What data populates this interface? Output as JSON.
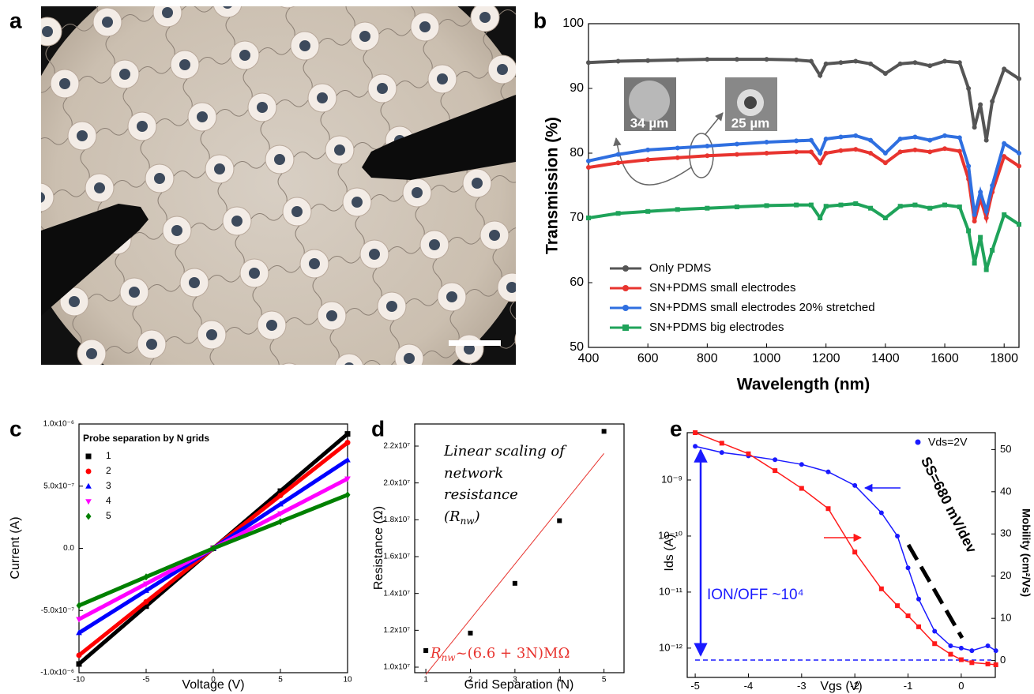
{
  "chart_data": [
    {
      "type": "image",
      "panel": "a"
    },
    {
      "type": "line",
      "panel": "b",
      "xlabel": "Wavelength (nm)",
      "ylabel": "Transmission (%)",
      "x": [
        400,
        500,
        600,
        700,
        800,
        900,
        1000,
        1100,
        1150,
        1180,
        1200,
        1250,
        1300,
        1350,
        1400,
        1450,
        1500,
        1550,
        1600,
        1650,
        1680,
        1700,
        1720,
        1740,
        1760,
        1800,
        1850
      ],
      "series": [
        {
          "name": "Only PDMS",
          "color": "#555555",
          "marker": "circle",
          "values": [
            94,
            94.2,
            94.3,
            94.4,
            94.5,
            94.5,
            94.5,
            94.4,
            94.2,
            92,
            93.8,
            94,
            94.2,
            93.8,
            92.3,
            93.8,
            94,
            93.5,
            94.2,
            94,
            90,
            84,
            87.5,
            82,
            88,
            93,
            91.5
          ]
        },
        {
          "name": "SN+PDMS small electrodes",
          "color": "#e8342f",
          "marker": "circle",
          "values": [
            77.8,
            78.5,
            79,
            79.3,
            79.6,
            79.8,
            80,
            80.2,
            80.2,
            78.5,
            80,
            80.4,
            80.6,
            80,
            78.5,
            80.2,
            80.5,
            80.2,
            80.7,
            80.3,
            76,
            69.5,
            73,
            70,
            74,
            79.5,
            78
          ]
        },
        {
          "name": "SN+PDMS small electrodes 20% stretched",
          "color": "#2f6fe0",
          "marker": "circle",
          "values": [
            78.8,
            79.8,
            80.5,
            80.8,
            81.1,
            81.4,
            81.7,
            81.9,
            82,
            80,
            82.2,
            82.5,
            82.7,
            82,
            80,
            82.2,
            82.5,
            82,
            82.7,
            82.4,
            78,
            70.5,
            74,
            71,
            75,
            81.5,
            80
          ]
        },
        {
          "name": "SN+PDMS big electrodes",
          "color": "#1fa35a",
          "marker": "square",
          "values": [
            70,
            70.7,
            71,
            71.3,
            71.5,
            71.7,
            71.9,
            72,
            72,
            70,
            71.8,
            72,
            72.2,
            71.5,
            70,
            71.8,
            72,
            71.5,
            72,
            71.7,
            68,
            63,
            67,
            62,
            65,
            70.5,
            69
          ]
        }
      ],
      "xlim": [
        400,
        1850
      ],
      "xticks": [
        400,
        600,
        800,
        1000,
        1200,
        1400,
        1600,
        1800
      ],
      "ylim": [
        50,
        100
      ],
      "yticks": [
        50,
        60,
        70,
        80,
        90,
        100
      ],
      "annotations": [
        "34 µm",
        "25 µm"
      ]
    },
    {
      "type": "line",
      "panel": "c",
      "xlabel": "Voltage (V)",
      "ylabel": "Current (A)",
      "legend_title": "Probe separation by N grids",
      "x": [
        -10,
        -5,
        0,
        5,
        10
      ],
      "series": [
        {
          "name": "1",
          "color": "#000000",
          "marker": "square",
          "values": [
            -9.3e-07,
            -4.65e-07,
            0,
            4.6e-07,
            9.2e-07
          ]
        },
        {
          "name": "2",
          "color": "#ff0000",
          "marker": "circle",
          "values": [
            -8.6e-07,
            -4.3e-07,
            0,
            4.25e-07,
            8.5e-07
          ]
        },
        {
          "name": "3",
          "color": "#0000ff",
          "marker": "triangle",
          "values": [
            -6.8e-07,
            -3.4e-07,
            0,
            3.55e-07,
            7.1e-07
          ]
        },
        {
          "name": "4",
          "color": "#ff00ff",
          "marker": "triangle-down",
          "values": [
            -5.7e-07,
            -2.85e-07,
            0,
            2.8e-07,
            5.6e-07
          ]
        },
        {
          "name": "5",
          "color": "#008000",
          "marker": "diamond",
          "values": [
            -4.6e-07,
            -2.3e-07,
            0,
            2.15e-07,
            4.3e-07
          ]
        }
      ],
      "xlim": [
        -10,
        10
      ],
      "xticks": [
        -10,
        -5,
        0,
        5,
        10
      ],
      "ylim": [
        -1e-06,
        1e-06
      ],
      "yticks": [
        {
          "value": -1e-06,
          "label": "-1.0x10⁻⁶"
        },
        {
          "value": -5e-07,
          "label": "-5.0x10⁻⁷"
        },
        {
          "value": 0,
          "label": "0.0"
        },
        {
          "value": 5e-07,
          "label": "5.0x10⁻⁷"
        },
        {
          "value": 1e-06,
          "label": "1.0x10⁻⁶"
        }
      ]
    },
    {
      "type": "scatter",
      "panel": "d",
      "xlabel": "Grid Separation (N)",
      "ylabel": "Resistance (Ω)",
      "x": [
        1,
        2,
        3,
        4,
        5
      ],
      "values": [
        10900000,
        11850000,
        14550000,
        17950000,
        22800000
      ],
      "color": "#000000",
      "fit": {
        "x": [
          1,
          5
        ],
        "values": [
          9600000,
          21600000
        ],
        "color": "#e8342f"
      },
      "xlim": [
        0.75,
        5.45
      ],
      "xticks": [
        1,
        2,
        3,
        4,
        5
      ],
      "ylim": [
        9700000,
        23200000
      ],
      "yticks": [
        {
          "value": 10000000,
          "label": "1.0x10⁷"
        },
        {
          "value": 12000000,
          "label": "1.2x10⁷"
        },
        {
          "value": 14000000,
          "label": "1.4x10⁷"
        },
        {
          "value": 16000000,
          "label": "1.6x10⁷"
        },
        {
          "value": 18000000,
          "label": "1.8x10⁷"
        },
        {
          "value": 20000000,
          "label": "2.0x10⁷"
        },
        {
          "value": 22000000,
          "label": "2.2x10⁷"
        }
      ],
      "note": [
        "Linear scaling of",
        "network",
        "resistance",
        "(R",
        "nw",
        ")"
      ],
      "formula": [
        "R",
        "nw",
        "~(6.6 + 3N)MΩ"
      ]
    },
    {
      "type": "dual",
      "panel": "e",
      "xlabel": "Vgs (V)",
      "ylabel": "Ids (A)",
      "y2label": "Mobility (cm²/Vs)",
      "x": [
        -5,
        -4.5,
        -4,
        -3.5,
        -3,
        -2.5,
        -2,
        -1.5,
        -1.2,
        -1,
        -0.8,
        -0.5,
        -0.2,
        0,
        0.2,
        0.5,
        0.65
      ],
      "series": [
        {
          "name": "Vds=2V",
          "color": "#1a1aff",
          "marker": "circle",
          "values": [
            4e-09,
            3.1e-09,
            2.7e-09,
            2.3e-09,
            1.9e-09,
            1.4e-09,
            8e-10,
            2.6e-10,
            1e-10,
            2.7e-11,
            7.5e-12,
            2e-12,
            1.1e-12,
            1e-12,
            9e-13,
            1.1e-12,
            9e-13
          ]
        },
        {
          "color": "#ff1a1a",
          "marker": "square",
          "axis": "y2",
          "values": [
            54,
            51.5,
            49,
            45,
            40.8,
            36,
            25.7,
            17,
            13,
            10.6,
            8,
            4,
            1.5,
            0.2,
            -0.5,
            -0.8,
            -1
          ]
        }
      ],
      "xlim": [
        -5.15,
        0.64
      ],
      "xticks": [
        -5,
        -4,
        -3,
        -2,
        -1,
        0
      ],
      "log_y": true,
      "ylim": [
        3e-13,
        7e-09
      ],
      "yticks": [
        {
          "value": 1e-12,
          "label": "10⁻¹²"
        },
        {
          "value": 1e-11,
          "label": "10⁻¹¹"
        },
        {
          "value": 1e-10,
          "label": "10⁻¹⁰"
        },
        {
          "value": 1e-09,
          "label": "10⁻⁹"
        }
      ],
      "y2lim": [
        -4,
        54
      ],
      "y2ticks": [
        0,
        10,
        20,
        30,
        40,
        50
      ],
      "annotations": [
        "SS=680 mV/dev",
        "ION/OFF ~10⁴"
      ]
    }
  ]
}
